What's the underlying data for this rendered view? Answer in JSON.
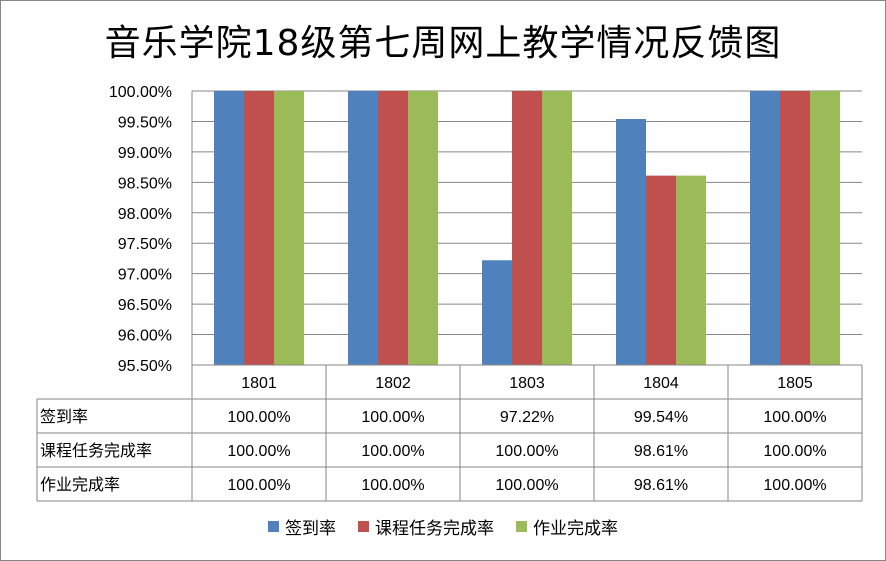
{
  "chart_data": {
    "type": "bar",
    "title": "音乐学院18级第七周网上教学情况反馈图",
    "categories": [
      "1801",
      "1802",
      "1803",
      "1804",
      "1805"
    ],
    "series": [
      {
        "name": "签到率",
        "color": "#4F81BD",
        "values": [
          100.0,
          100.0,
          97.22,
          99.54,
          100.0
        ],
        "labels": [
          "100.00%",
          "100.00%",
          "97.22%",
          "99.54%",
          "100.00%"
        ]
      },
      {
        "name": "课程任务完成率",
        "color": "#C0504D",
        "values": [
          100.0,
          100.0,
          100.0,
          98.61,
          100.0
        ],
        "labels": [
          "100.00%",
          "100.00%",
          "100.00%",
          "98.61%",
          "100.00%"
        ]
      },
      {
        "name": "作业完成率",
        "color": "#9BBB59",
        "values": [
          100.0,
          100.0,
          100.0,
          98.61,
          100.0
        ],
        "labels": [
          "100.00%",
          "100.00%",
          "100.00%",
          "98.61%",
          "100.00%"
        ]
      }
    ],
    "ylim": [
      95.5,
      100
    ],
    "yticks": [
      "100.00%",
      "99.50%",
      "99.00%",
      "98.50%",
      "98.00%",
      "97.50%",
      "97.00%",
      "96.50%",
      "96.00%",
      "95.50%"
    ],
    "ytick_values": [
      100,
      99.5,
      99,
      98.5,
      98,
      97.5,
      97,
      96.5,
      96,
      95.5
    ],
    "grid": true,
    "legend": "bottom",
    "data_table": true
  }
}
